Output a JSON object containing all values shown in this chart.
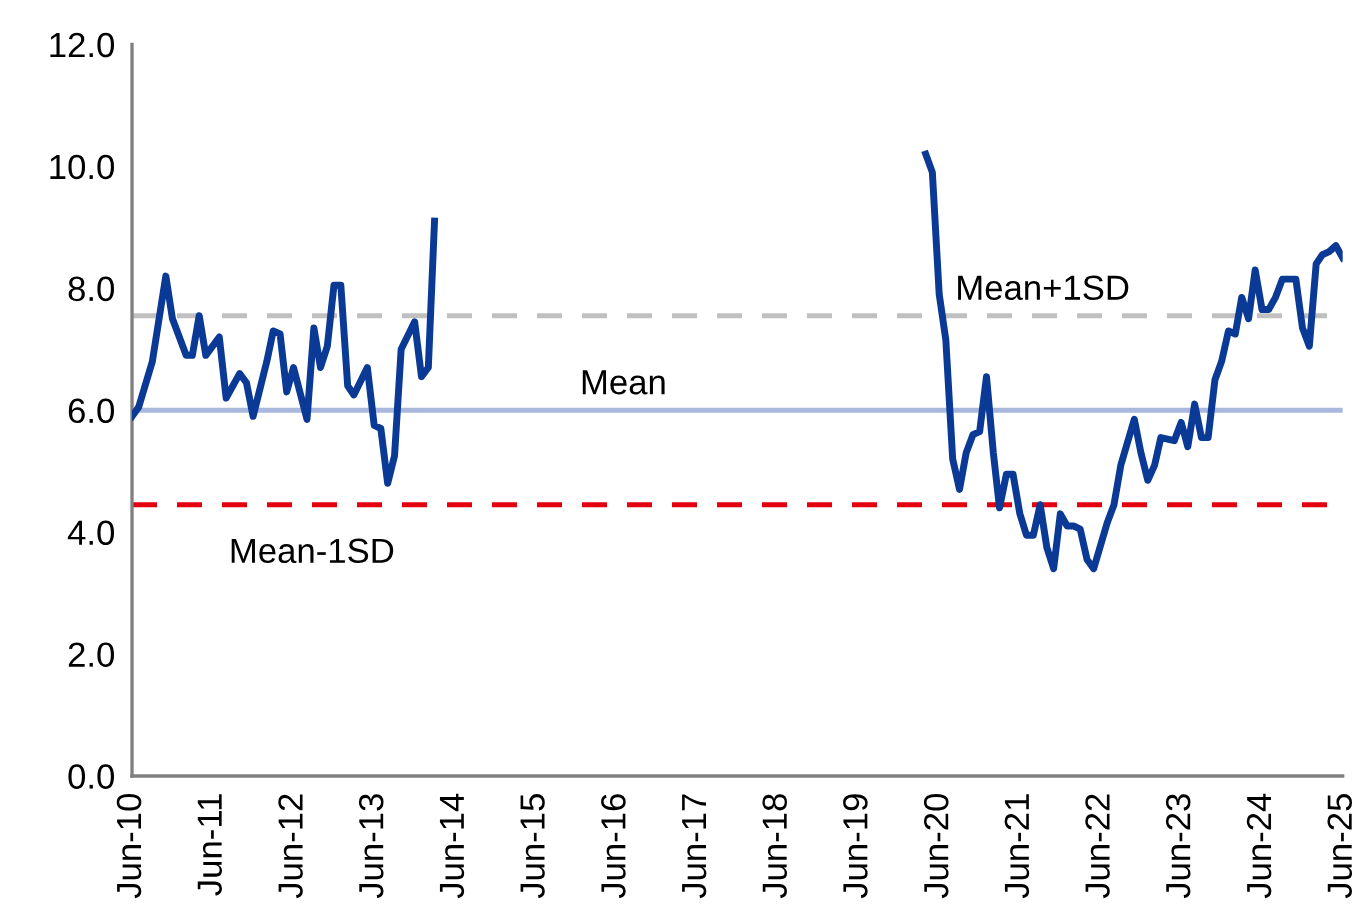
{
  "chart_data": {
    "type": "line",
    "x": [
      "2010-06",
      "2010-07",
      "2010-09",
      "2010-11",
      "2010-12",
      "2011-02",
      "2011-03",
      "2011-04",
      "2011-05",
      "2011-07",
      "2011-08",
      "2011-10",
      "2011-11",
      "2011-12",
      "2012-02",
      "2012-03",
      "2012-04",
      "2012-05",
      "2012-06",
      "2012-08",
      "2012-09",
      "2012-10",
      "2012-11",
      "2012-12",
      "2013-01",
      "2013-02",
      "2013-03",
      "2013-05",
      "2013-06",
      "2013-07",
      "2013-08",
      "2013-09",
      "2013-10",
      "2013-12",
      "2014-01",
      "2014-02",
      "2014-03",
      "2017-01",
      "2020-04",
      "2020-05",
      "2020-06",
      "2020-07",
      "2020-08",
      "2020-09",
      "2020-10",
      "2020-11",
      "2020-12",
      "2021-01",
      "2021-02",
      "2021-03",
      "2021-04",
      "2021-05",
      "2021-06",
      "2021-07",
      "2021-08",
      "2021-09",
      "2021-10",
      "2021-11",
      "2021-12",
      "2022-01",
      "2022-02",
      "2022-03",
      "2022-04",
      "2022-05",
      "2022-07",
      "2022-08",
      "2022-09",
      "2022-11",
      "2022-12",
      "2023-01",
      "2023-02",
      "2023-03",
      "2023-05",
      "2023-06",
      "2023-07",
      "2023-08",
      "2023-09",
      "2023-10",
      "2023-11",
      "2023-12",
      "2024-01",
      "2024-02",
      "2024-03",
      "2024-04",
      "2024-05",
      "2024-06",
      "2024-07",
      "2024-08",
      "2024-09",
      "2024-11",
      "2024-12",
      "2025-01",
      "2025-02",
      "2025-03",
      "2025-04",
      "2025-05",
      "2025-06"
    ],
    "series": [
      {
        "color": "#0a3a96",
        "values": [
          5.9,
          6.05,
          6.8,
          8.2,
          7.5,
          6.9,
          6.9,
          7.55,
          6.9,
          7.2,
          6.2,
          6.6,
          6.45,
          5.9,
          6.8,
          7.3,
          7.25,
          6.3,
          6.7,
          5.85,
          7.35,
          6.7,
          7.05,
          8.05,
          8.05,
          6.4,
          6.25,
          6.7,
          5.75,
          5.7,
          4.8,
          5.25,
          7.0,
          7.45,
          6.55,
          6.7,
          9.1,
          null,
          10.2,
          9.9,
          7.9,
          7.15,
          5.2,
          4.7,
          5.3,
          5.6,
          5.65,
          6.55,
          5.3,
          4.4,
          4.95,
          4.95,
          4.3,
          3.95,
          3.95,
          4.45,
          3.75,
          3.4,
          4.3,
          4.1,
          4.1,
          4.05,
          3.55,
          3.4,
          4.15,
          4.45,
          5.1,
          5.85,
          5.3,
          4.85,
          5.1,
          5.55,
          5.5,
          5.8,
          5.4,
          6.1,
          5.55,
          5.55,
          6.5,
          6.8,
          7.3,
          7.25,
          7.85,
          7.5,
          8.3,
          7.65,
          7.65,
          7.85,
          8.15,
          8.15,
          7.35,
          7.05,
          8.4,
          8.55,
          8.6,
          8.7,
          8.5
        ]
      }
    ],
    "xlim": [
      "2010-06",
      "2025-06"
    ],
    "xticks": [
      {
        "value": "2010-06",
        "label": "Jun-10"
      },
      {
        "value": "2011-06",
        "label": "Jun-11"
      },
      {
        "value": "2012-06",
        "label": "Jun-12"
      },
      {
        "value": "2013-06",
        "label": "Jun-13"
      },
      {
        "value": "2014-06",
        "label": "Jun-14"
      },
      {
        "value": "2015-06",
        "label": "Jun-15"
      },
      {
        "value": "2016-06",
        "label": "Jun-16"
      },
      {
        "value": "2017-06",
        "label": "Jun-17"
      },
      {
        "value": "2018-06",
        "label": "Jun-18"
      },
      {
        "value": "2019-06",
        "label": "Jun-19"
      },
      {
        "value": "2020-06",
        "label": "Jun-20"
      },
      {
        "value": "2021-06",
        "label": "Jun-21"
      },
      {
        "value": "2022-06",
        "label": "Jun-22"
      },
      {
        "value": "2023-06",
        "label": "Jun-23"
      },
      {
        "value": "2024-06",
        "label": "Jun-24"
      },
      {
        "value": "2025-06",
        "label": "Jun-25"
      }
    ],
    "ylim": [
      0,
      12
    ],
    "yticks": [
      {
        "value": 0,
        "label": "0.0"
      },
      {
        "value": 2,
        "label": "2.0"
      },
      {
        "value": 4,
        "label": "4.0"
      },
      {
        "value": 6,
        "label": "6.0"
      },
      {
        "value": 8,
        "label": "8.0"
      },
      {
        "value": 10,
        "label": "10.0"
      },
      {
        "value": 12,
        "label": "12.0"
      }
    ],
    "ref_lines": [
      {
        "axis": "y",
        "value": 6.0,
        "label": "Mean",
        "color": "#a9b8dc",
        "line_style": "solid"
      },
      {
        "axis": "y",
        "value": 7.55,
        "label": "Mean+1SD",
        "color": "#c0c0c0",
        "line_style": "dashed"
      },
      {
        "axis": "y",
        "value": 4.45,
        "label": "Mean-1SD",
        "color": "#e3000f",
        "line_style": "dashed"
      }
    ],
    "grid": false,
    "legend": false,
    "marker": "none",
    "line_style": "solid"
  }
}
